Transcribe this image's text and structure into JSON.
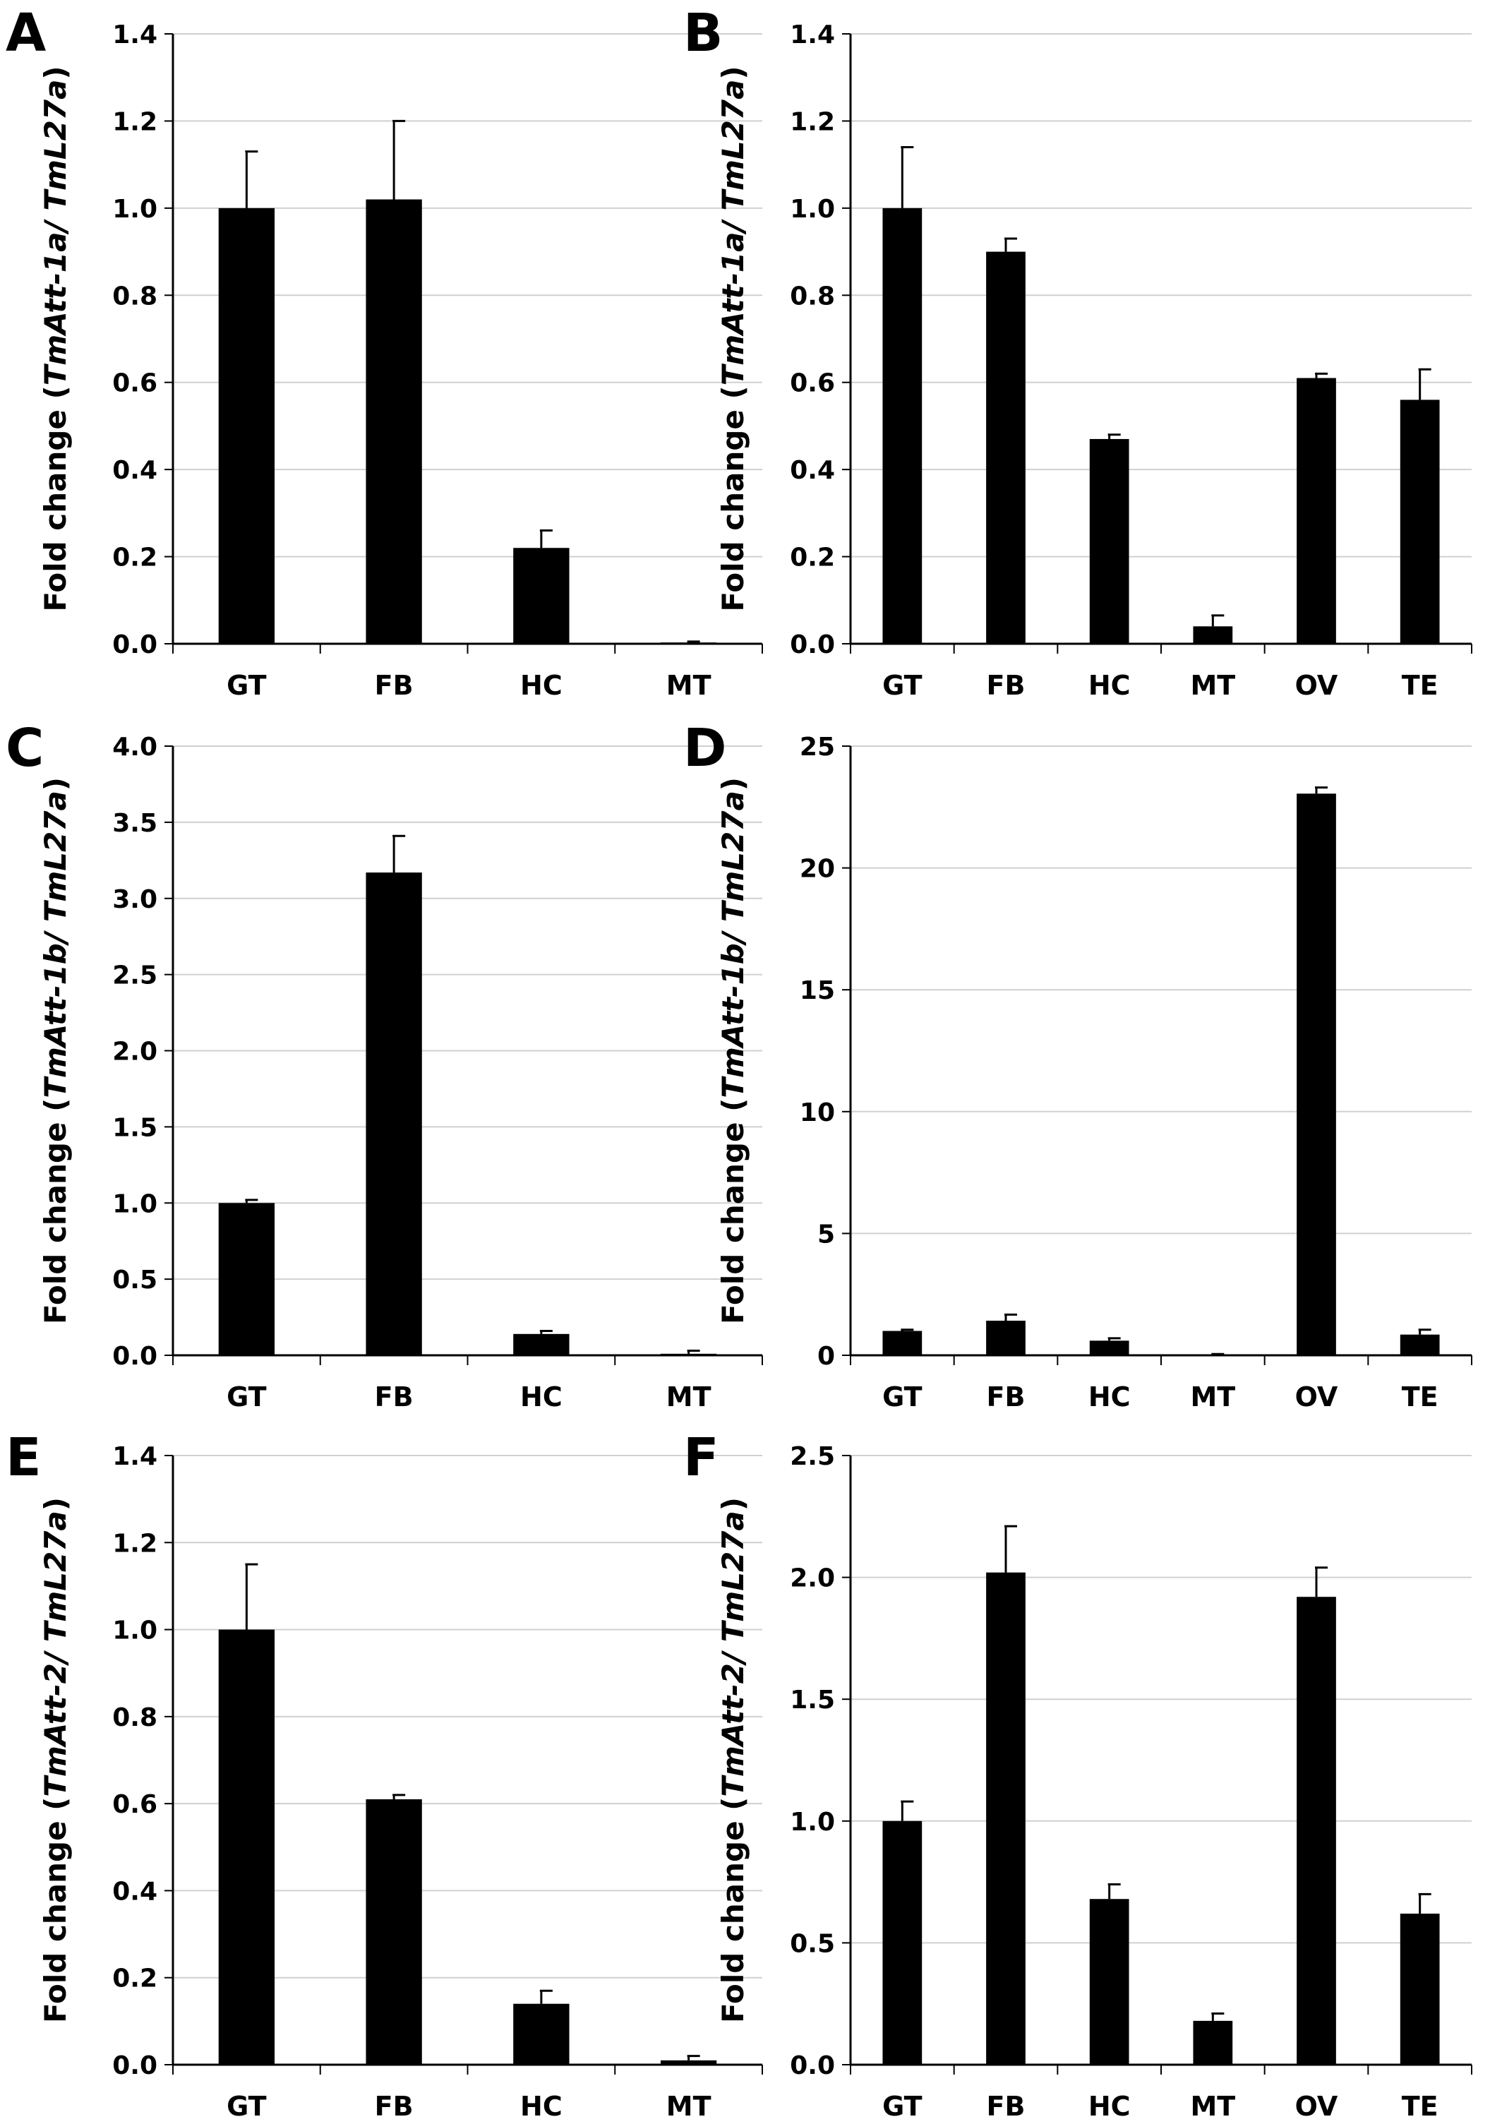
{
  "chart_data": [
    {
      "panel": "A",
      "type": "bar",
      "ylabel_prefix": "Fold change (",
      "ylabel_gene": "TmAtt-1a/ TmL27a",
      "ylabel_suffix": ")",
      "categories": [
        "GT",
        "FB",
        "HC",
        "MT"
      ],
      "values": [
        1.0,
        1.02,
        0.22,
        0.003
      ],
      "errors": [
        0.13,
        0.18,
        0.04,
        0.002
      ],
      "ylim": [
        0,
        1.4
      ],
      "yticks": [
        "0.0",
        "0.2",
        "0.4",
        "0.6",
        "0.8",
        "1.0",
        "1.2",
        "1.4"
      ],
      "bar_color": "#000000",
      "grid": true
    },
    {
      "panel": "B",
      "type": "bar",
      "ylabel_prefix": "Fold change (",
      "ylabel_gene": "TmAtt-1a/ TmL27a",
      "ylabel_suffix": ")",
      "categories": [
        "GT",
        "FB",
        "HC",
        "MT",
        "OV",
        "TE"
      ],
      "values": [
        1.0,
        0.9,
        0.47,
        0.04,
        0.61,
        0.56
      ],
      "errors": [
        0.14,
        0.03,
        0.01,
        0.025,
        0.01,
        0.07
      ],
      "ylim": [
        0,
        1.4
      ],
      "yticks": [
        "0.0",
        "0.2",
        "0.4",
        "0.6",
        "0.8",
        "1.0",
        "1.2",
        "1.4"
      ],
      "bar_color": "#000000",
      "grid": true
    },
    {
      "panel": "C",
      "type": "bar",
      "ylabel_prefix": "Fold change (",
      "ylabel_gene": "TmAtt-1b/ TmL27a",
      "ylabel_suffix": ")",
      "categories": [
        "GT",
        "FB",
        "HC",
        "MT"
      ],
      "values": [
        1.0,
        3.17,
        0.14,
        0.01
      ],
      "errors": [
        0.02,
        0.24,
        0.02,
        0.02
      ],
      "ylim": [
        0,
        4.0
      ],
      "yticks": [
        "0.0",
        "0.5",
        "1.0",
        "1.5",
        "2.0",
        "2.5",
        "3.0",
        "3.5",
        "4.0"
      ],
      "bar_color": "#000000",
      "grid": true
    },
    {
      "panel": "D",
      "type": "bar",
      "ylabel_prefix": "Fold change (",
      "ylabel_gene": "TmAtt-1b/ TmL27a",
      "ylabel_suffix": ")",
      "categories": [
        "GT",
        "FB",
        "HC",
        "MT",
        "OV",
        "TE"
      ],
      "values": [
        1.0,
        1.42,
        0.6,
        0.02,
        23.05,
        0.85
      ],
      "errors": [
        0.05,
        0.25,
        0.1,
        0.03,
        0.25,
        0.2
      ],
      "ylim": [
        0,
        25
      ],
      "yticks": [
        "0",
        "5",
        "10",
        "15",
        "20",
        "25"
      ],
      "bar_color": "#000000",
      "grid": true
    },
    {
      "panel": "E",
      "type": "bar",
      "ylabel_prefix": "Fold change (",
      "ylabel_gene": "TmAtt-2/ TmL27a",
      "ylabel_suffix": ")",
      "categories": [
        "GT",
        "FB",
        "HC",
        "MT"
      ],
      "values": [
        1.0,
        0.61,
        0.14,
        0.01
      ],
      "errors": [
        0.15,
        0.01,
        0.03,
        0.01
      ],
      "ylim": [
        0,
        1.4
      ],
      "yticks": [
        "0.0",
        "0.2",
        "0.4",
        "0.6",
        "0.8",
        "1.0",
        "1.2",
        "1.4"
      ],
      "bar_color": "#000000",
      "grid": true
    },
    {
      "panel": "F",
      "type": "bar",
      "ylabel_prefix": "Fold change (",
      "ylabel_gene": "TmAtt-2/ TmL27a",
      "ylabel_suffix": ")",
      "categories": [
        "GT",
        "FB",
        "HC",
        "MT",
        "OV",
        "TE"
      ],
      "values": [
        1.0,
        2.02,
        0.68,
        0.18,
        1.92,
        0.62
      ],
      "errors": [
        0.08,
        0.19,
        0.06,
        0.03,
        0.12,
        0.08
      ],
      "ylim": [
        0,
        2.5
      ],
      "yticks": [
        "0.0",
        "0.5",
        "1.0",
        "1.5",
        "2.0",
        "2.5"
      ],
      "bar_color": "#000000",
      "grid": true
    }
  ]
}
